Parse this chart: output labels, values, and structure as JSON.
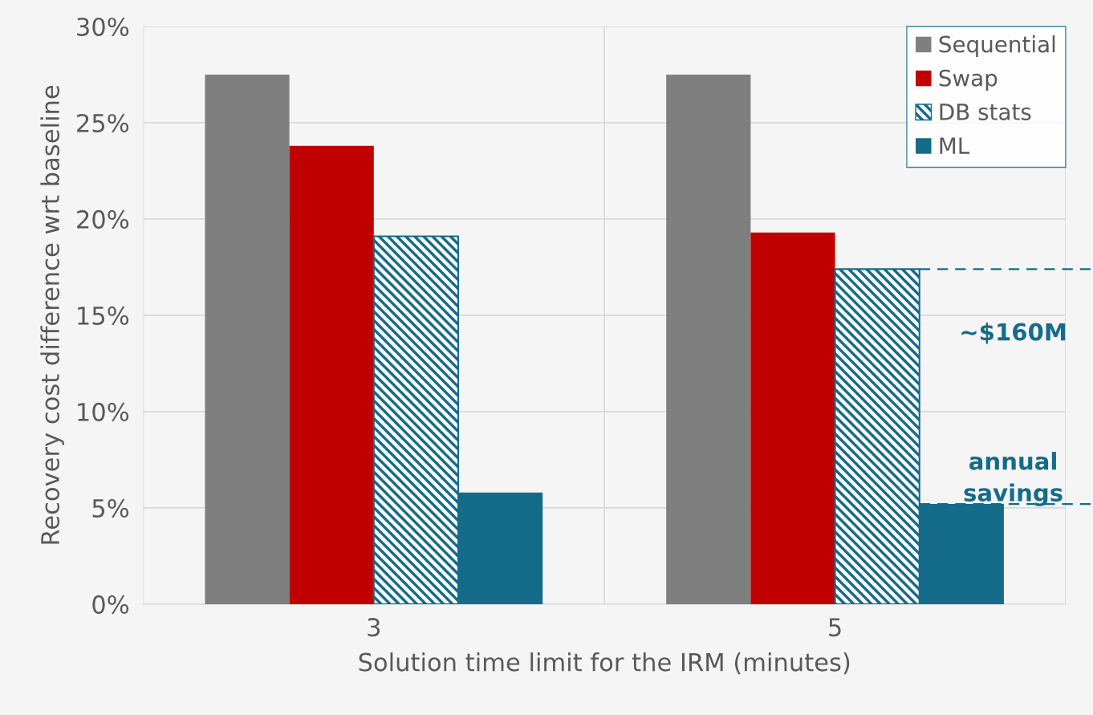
{
  "chart_data": {
    "type": "bar",
    "xlabel": "Solution time limit for the IRM (minutes)",
    "ylabel": "Recovery cost difference wrt baseline",
    "categories": [
      "3",
      "5"
    ],
    "series": [
      {
        "name": "Sequential",
        "color": "#7f7f7f",
        "values": [
          27.5,
          27.5
        ]
      },
      {
        "name": "Swap",
        "color": "#c00000",
        "values": [
          23.8,
          19.3
        ]
      },
      {
        "name": "DB stats",
        "color": "#156b8a",
        "values": [
          19.1,
          17.4
        ]
      },
      {
        "name": "ML",
        "color": "#156b8a",
        "values": [
          5.8,
          5.2
        ]
      }
    ],
    "ylim": [
      0,
      30
    ],
    "yticks": [
      {
        "value": 0,
        "label": "0%"
      },
      {
        "value": 5,
        "label": "5%"
      },
      {
        "value": 10,
        "label": "10%"
      },
      {
        "value": 15,
        "label": "15%"
      },
      {
        "value": 20,
        "label": "20%"
      },
      {
        "value": 25,
        "label": "25%"
      },
      {
        "value": 30,
        "label": "30%"
      }
    ],
    "ref_lines": [
      {
        "axis": "y",
        "value": 17.4,
        "color": "#156b8a",
        "line_style": "dashed"
      },
      {
        "axis": "y",
        "value": 5.2,
        "color": "#156b8a",
        "line_style": "dashed"
      }
    ],
    "annotations": [
      "~$160M",
      "annual\nsavings"
    ],
    "grid": true,
    "legend": "top right"
  }
}
